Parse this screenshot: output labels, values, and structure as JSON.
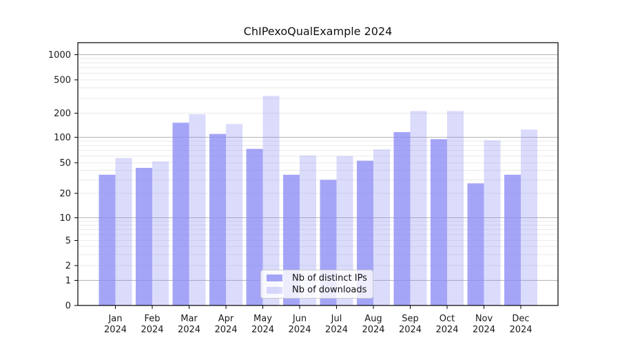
{
  "title": "ChIPexoQualExample 2024",
  "legend": {
    "position": "lower center",
    "items": [
      {
        "label": "Nb of distinct IPs",
        "swatch": "ips"
      },
      {
        "label": "Nb of downloads",
        "swatch": "downloads"
      }
    ]
  },
  "colors": {
    "bar_distinct_ips": "rgba(140,140,245,0.78)",
    "bar_downloads": "rgba(140,140,245,0.31)",
    "grid_major": "#b3b3b3",
    "grid_minor": "#e9e9e9",
    "axis": "#000000",
    "text": "#1a1a1a"
  },
  "chart_data": {
    "type": "bar",
    "title": "ChIPexoQualExample 2024",
    "categories": [
      "Jan 2024",
      "Feb 2024",
      "Mar 2024",
      "Apr 2024",
      "May 2024",
      "Jun 2024",
      "Jul 2024",
      "Aug 2024",
      "Sep 2024",
      "Oct 2024",
      "Nov 2024",
      "Dec 2024"
    ],
    "series": [
      {
        "name": "Nb of distinct IPs",
        "values": [
          35,
          43,
          152,
          110,
          73,
          35,
          30,
          53,
          116,
          95,
          27,
          35
        ]
      },
      {
        "name": "Nb of downloads",
        "values": [
          57,
          52,
          194,
          146,
          322,
          61,
          60,
          72,
          212,
          212,
          92,
          125
        ]
      }
    ],
    "y_axis": {
      "scale": "log-like (asinh), includes 0",
      "ticks": [
        0,
        1,
        2,
        5,
        10,
        20,
        50,
        100,
        200,
        500,
        1000
      ],
      "range": [
        0,
        1400
      ]
    },
    "x_axis": {
      "tick_label_lines": 2,
      "year_line": "2024"
    },
    "grid": "horizontal major + minor",
    "legend_position": "lower center"
  }
}
